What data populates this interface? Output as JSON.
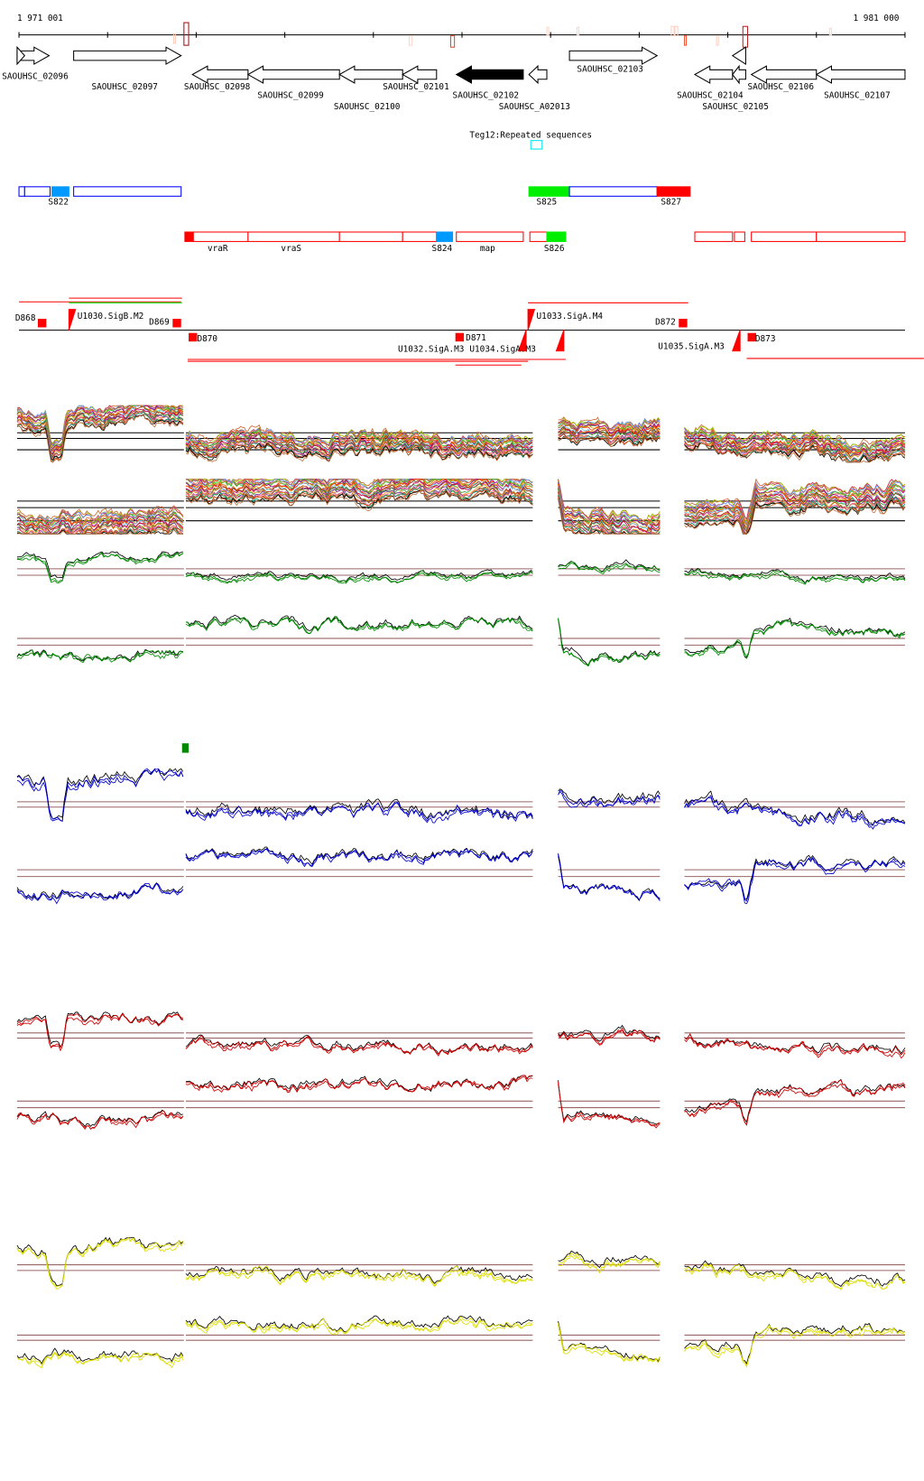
{
  "ruler": {
    "start_label": "1 971 001",
    "end_label": "1 981 000"
  },
  "genes": [
    {
      "label": "SAOUHSC_02096",
      "strand": "+"
    },
    {
      "label": "SAOUHSC_02097",
      "strand": "+"
    },
    {
      "label": "SAOUHSC_02098",
      "strand": "-"
    },
    {
      "label": "SAOUHSC_02099",
      "strand": "-"
    },
    {
      "label": "SAOUHSC_02100",
      "strand": "-"
    },
    {
      "label": "SAOUHSC_02101",
      "strand": "-"
    },
    {
      "label": "SAOUHSC_02102",
      "strand": "-",
      "highlighted": true
    },
    {
      "label": "SAOUHSC_A02013",
      "strand": "-"
    },
    {
      "label": "SAOUHSC_02103",
      "strand": "+"
    },
    {
      "label": "SAOUHSC_02104",
      "strand": "-"
    },
    {
      "label": "SAOUHSC_02105",
      "strand": "-"
    },
    {
      "label": "SAOUHSC_02106",
      "strand": "-"
    },
    {
      "label": "SAOUHSC_02107",
      "strand": "-"
    }
  ],
  "repeat_track": {
    "label": "Teg12:Repeated sequences",
    "color": "#00e5ee"
  },
  "segments_plus": [
    "S822",
    "S825",
    "S827"
  ],
  "segments_minus": [
    "vraR",
    "vraS",
    "S824",
    "map",
    "S826"
  ],
  "promoters": {
    "labels": [
      "D868",
      "U1030.SigB.M2",
      "D869",
      "D870",
      "D871",
      "U1032.SigA.M3",
      "U1034.SigA.M3",
      "U1033.SigA.M4",
      "D872",
      "U1035.SigA.M3",
      "D873"
    ]
  },
  "colors": {
    "plus_strand": "#0000ff",
    "minus_strand": "#ff0000",
    "feature_blue": "#0099ff",
    "feature_green": "#00ee00",
    "feature_red": "#ff0000",
    "green_track": "#008800",
    "blue_track": "#0000cc",
    "red_track": "#cc0000",
    "yellow_track": "#dddd00",
    "threshold_line": "#996666"
  }
}
